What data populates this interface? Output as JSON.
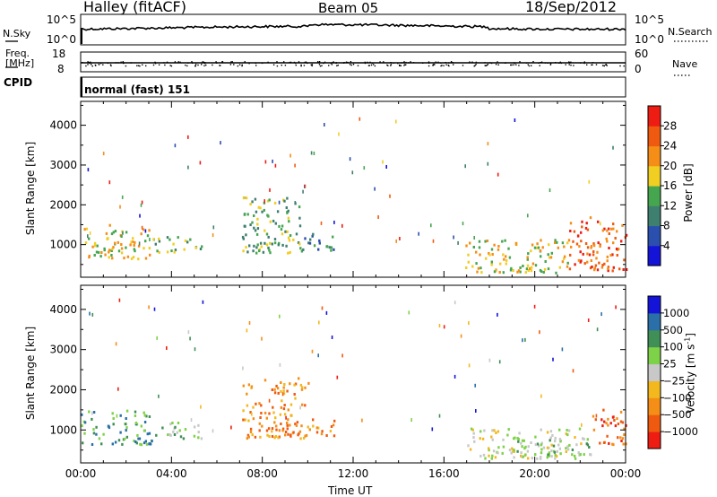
{
  "header": {
    "station": "Halley (fitACF)",
    "beam": "Beam 05",
    "date": "18/Sep/2012"
  },
  "summary_panels": {
    "nsky": {
      "label": "N.Sky",
      "right_label": "N.Search",
      "left_ticks": [
        "10^5",
        "10^0"
      ],
      "right_ticks": [
        "10^5",
        "10^0"
      ]
    },
    "freq": {
      "label_line1": "Freq.",
      "label_line2": "[MHz]",
      "left_ticks": [
        "18",
        "8"
      ],
      "right_ticks": [
        "60",
        "0"
      ],
      "right_label": "Nave"
    },
    "cpid": {
      "label": "CPID",
      "program": "normal (fast) 151"
    }
  },
  "colors": {
    "power": [
      "#1414d8",
      "#2a4fae",
      "#3f7f70",
      "#46a64f",
      "#f0ce22",
      "#f58e16",
      "#f05a10",
      "#ee1c12"
    ],
    "velocity": [
      "#ee1c12",
      "#f05a10",
      "#f58e16",
      "#f2b81e",
      "#c8c8c8",
      "#7ed247",
      "#3f8f56",
      "#2a6fa8",
      "#1414d8"
    ],
    "line_color": "#000000"
  },
  "chart_data": [
    {
      "type": "heatmap",
      "name": "power",
      "ylabel": "Slant Range [km]",
      "y_ticks": [
        1000,
        2000,
        3000,
        4000
      ],
      "ylim": [
        180,
        4600
      ],
      "x_ticks": [
        "00:00",
        "04:00",
        "08:00",
        "12:00",
        "16:00",
        "20:00",
        "00:00"
      ],
      "xlim_hours": [
        0,
        24
      ],
      "colorbar": {
        "label": "Power [dB]",
        "range": [
          0,
          32
        ],
        "tick_labels": [
          "4",
          "8",
          "12",
          "16",
          "20",
          "24",
          "28"
        ],
        "tick_values": [
          4,
          8,
          12,
          16,
          20,
          24,
          28
        ]
      },
      "echo_regions": [
        {
          "hour_start": 0.0,
          "hour_end": 3.1,
          "range_low": 600,
          "range_high": 1450,
          "level": 4
        },
        {
          "hour_start": 3.1,
          "hour_end": 5.3,
          "range_low": 750,
          "range_high": 1150,
          "level": 3
        },
        {
          "hour_start": 7.1,
          "hour_end": 9.8,
          "range_low": 750,
          "range_high": 2150,
          "level": 3
        },
        {
          "hour_start": 9.8,
          "hour_end": 11.2,
          "range_low": 800,
          "range_high": 1250,
          "level": 2
        },
        {
          "hour_start": 16.9,
          "hour_end": 21.5,
          "range_low": 250,
          "range_high": 1100,
          "level": 4
        },
        {
          "hour_start": 21.5,
          "hour_end": 24.0,
          "range_low": 300,
          "range_high": 1650,
          "level": 6
        }
      ]
    },
    {
      "type": "heatmap",
      "name": "velocity",
      "ylabel": "Slant Range [km]",
      "y_ticks": [
        1000,
        2000,
        3000,
        4000
      ],
      "ylim": [
        180,
        4600
      ],
      "x_ticks": [
        "00:00",
        "04:00",
        "08:00",
        "12:00",
        "16:00",
        "20:00",
        "00:00"
      ],
      "xlim_hours": [
        0,
        24
      ],
      "xlabel": "Time UT",
      "colorbar": {
        "label": "Velocity [m s^-1]",
        "tick_labels": [
          "1000",
          "500",
          "100",
          "25",
          "−25",
          "−100",
          "−500",
          "−1000"
        ]
      },
      "echo_regions": [
        {
          "hour_start": 0.0,
          "hour_end": 3.1,
          "range_low": 600,
          "range_high": 1450,
          "level": 6
        },
        {
          "hour_start": 3.1,
          "hour_end": 5.3,
          "range_low": 750,
          "range_high": 1150,
          "level": 5
        },
        {
          "hour_start": 7.1,
          "hour_end": 10.0,
          "range_low": 750,
          "range_high": 2250,
          "level": 2
        },
        {
          "hour_start": 10.0,
          "hour_end": 11.2,
          "range_low": 800,
          "range_high": 1250,
          "level": 2
        },
        {
          "hour_start": 17.0,
          "hour_end": 22.0,
          "range_low": 250,
          "range_high": 1000,
          "level": 4
        },
        {
          "hour_start": 19.0,
          "hour_end": 22.5,
          "range_low": 350,
          "range_high": 800,
          "level": 5
        },
        {
          "hour_start": 22.5,
          "hour_end": 24.0,
          "range_low": 600,
          "range_high": 1500,
          "level": 1
        }
      ]
    }
  ]
}
